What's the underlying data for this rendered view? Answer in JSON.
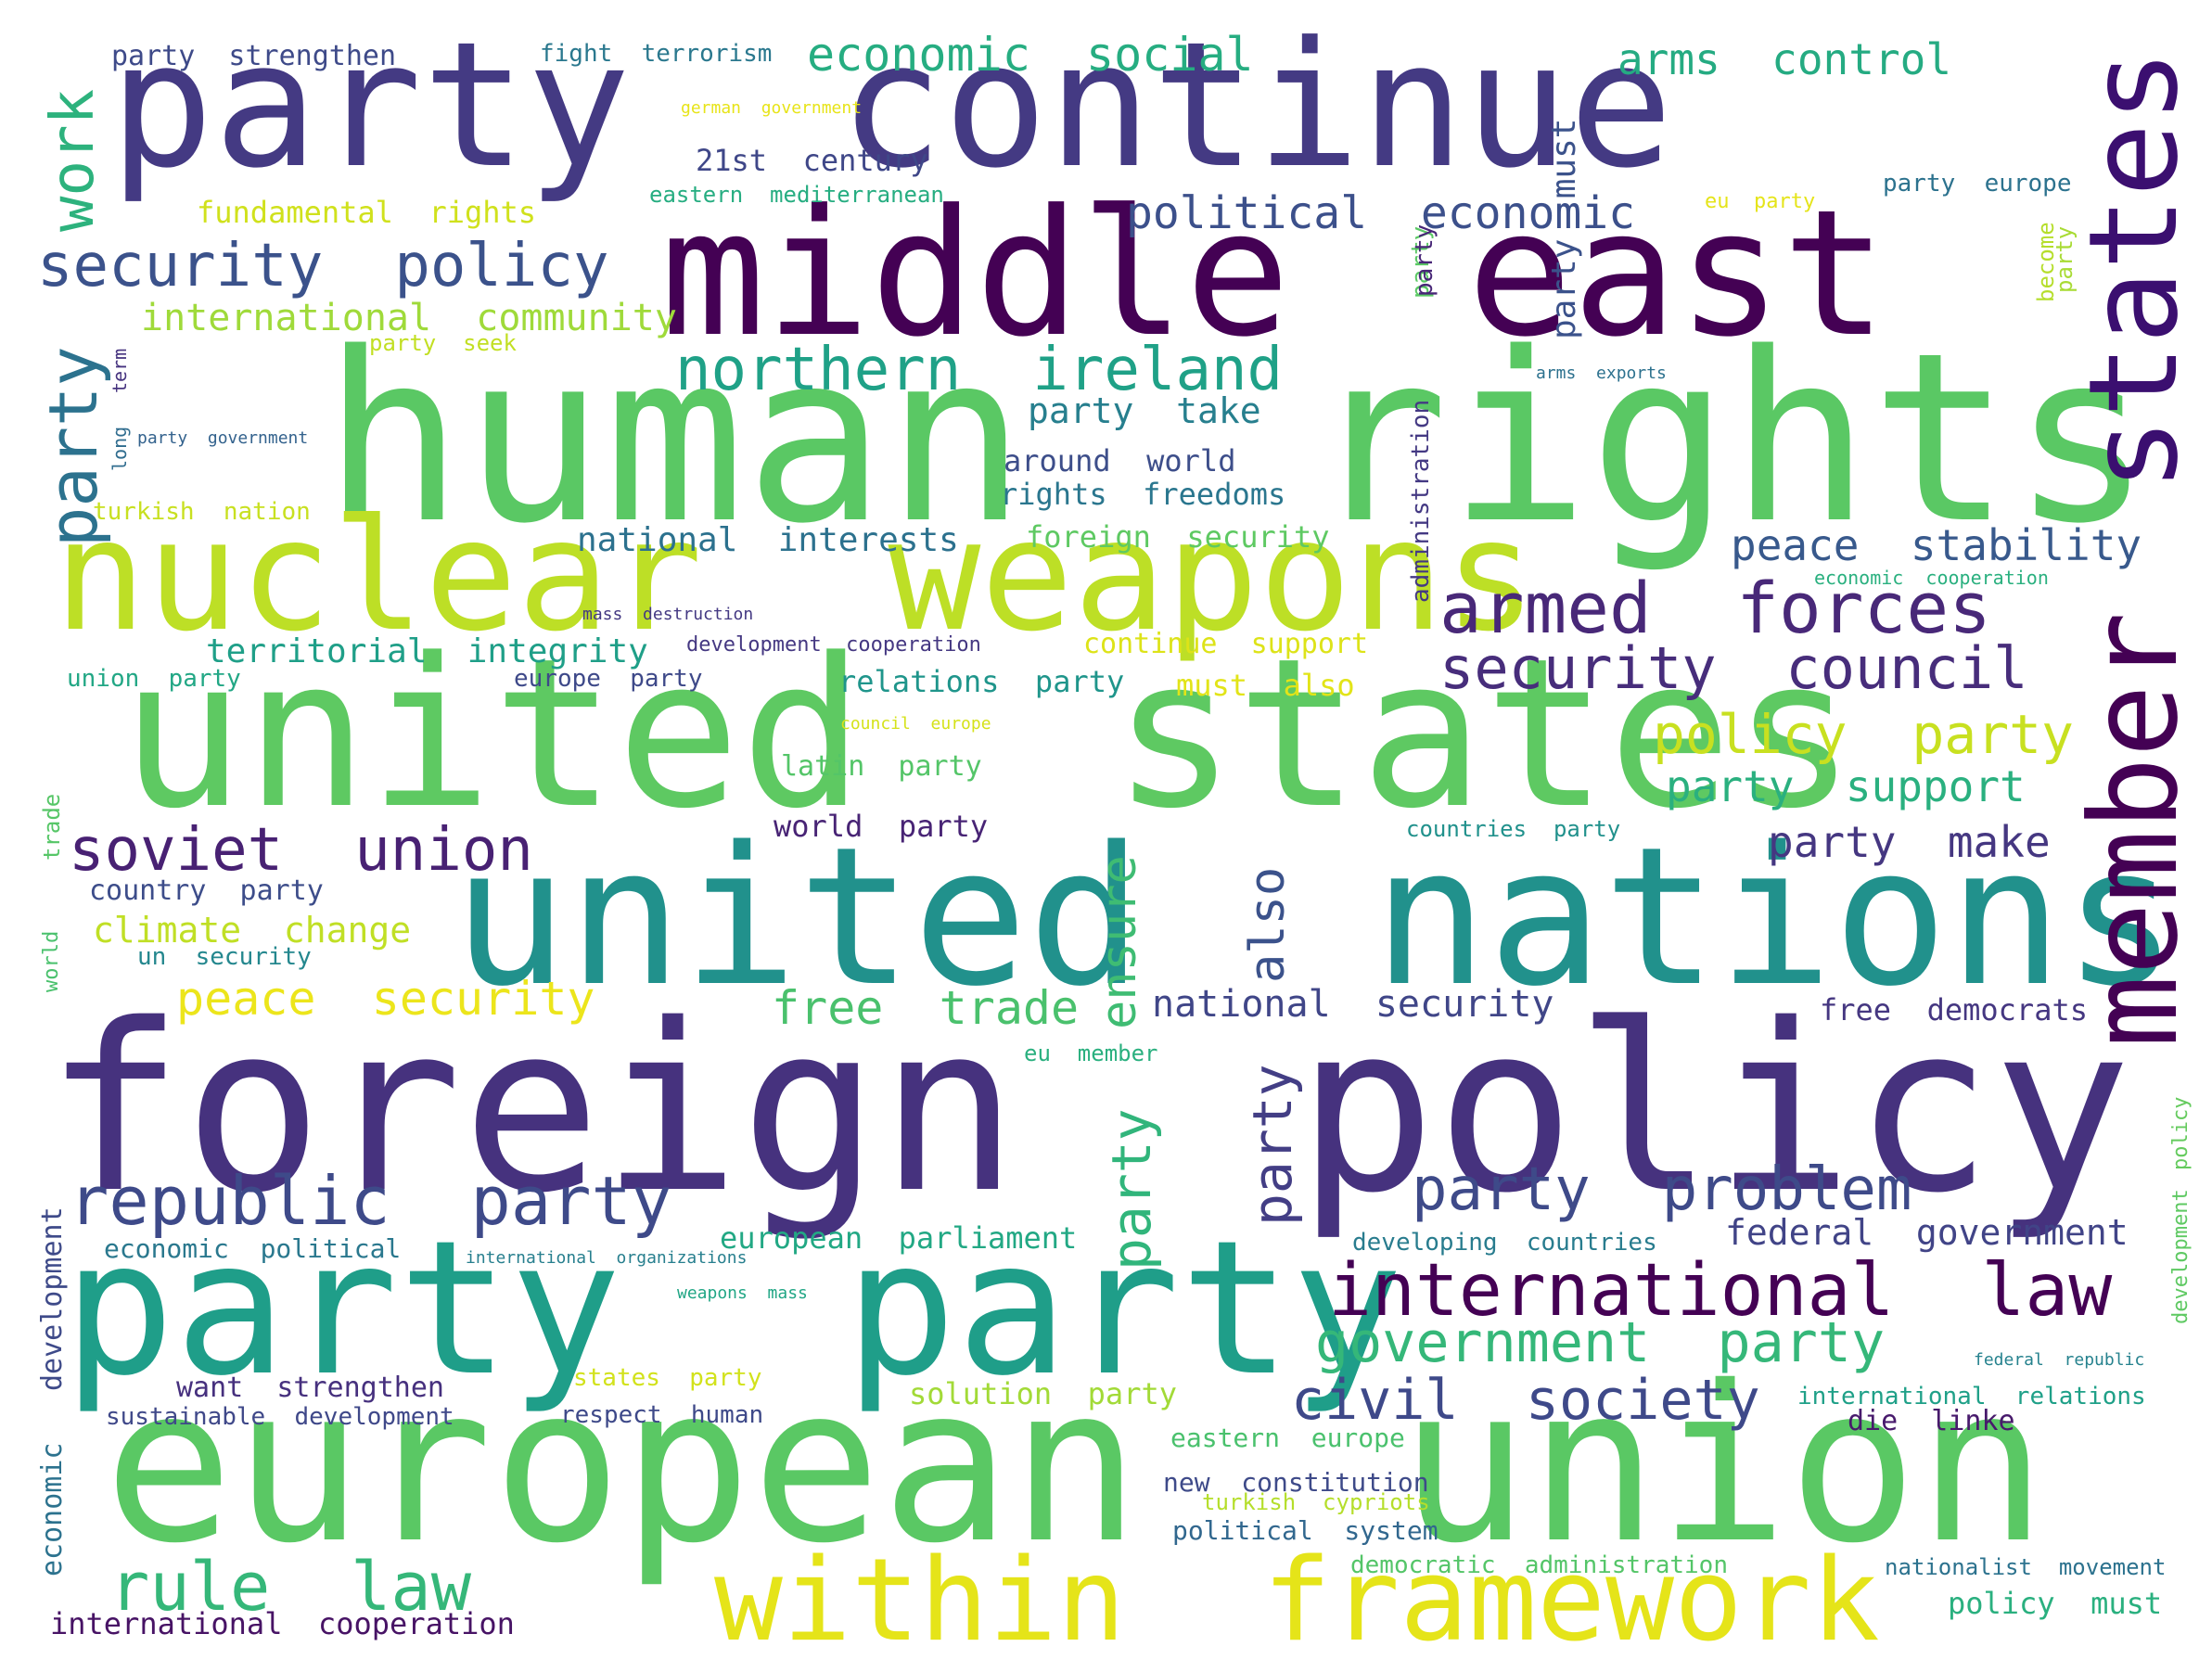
{
  "phrases": [
    {
      "text": "party  continue",
      "color": "#443a83"
    },
    {
      "text": "middle",
      "color": "#440154"
    },
    {
      "text": "east",
      "color": "#440154"
    },
    {
      "text": "human  rights",
      "color": "#5ac864"
    },
    {
      "text": "nuclear  weapons",
      "color": "#bddf26"
    },
    {
      "text": "united  states",
      "color": "#5ec962"
    },
    {
      "text": "united  nations",
      "color": "#21918c"
    },
    {
      "text": "foreign  policy",
      "color": "#46327e"
    },
    {
      "text": "party  party",
      "color": "#1f9e89"
    },
    {
      "text": "european  union",
      "color": "#5ac864"
    },
    {
      "text": "within  framework",
      "color": "#e5e419"
    },
    {
      "text": "states",
      "color": "#3b0f70"
    },
    {
      "text": "member",
      "color": "#440154"
    },
    {
      "text": "work",
      "color": "#2db27d"
    },
    {
      "text": "party",
      "color": "#2c728e"
    },
    {
      "text": "security  policy",
      "color": "#3b528b"
    },
    {
      "text": "northern  ireland",
      "color": "#1fa187"
    },
    {
      "text": "armed  forces",
      "color": "#482878"
    },
    {
      "text": "security  council",
      "color": "#472d7b"
    },
    {
      "text": "soviet  union",
      "color": "#482173"
    },
    {
      "text": "republic  party",
      "color": "#3e4a89"
    },
    {
      "text": "rule  law",
      "color": "#35b779"
    },
    {
      "text": "international  law",
      "color": "#440154"
    },
    {
      "text": "government  party",
      "color": "#35b779"
    },
    {
      "text": "civil  society",
      "color": "#3e4989"
    },
    {
      "text": "party  problem",
      "color": "#3e4a89"
    },
    {
      "text": "policy  party",
      "color": "#c8e020"
    },
    {
      "text": "party  support",
      "color": "#2ab07f"
    },
    {
      "text": "party  make",
      "color": "#453781"
    },
    {
      "text": "peace  stability",
      "color": "#38598c"
    },
    {
      "text": "economic  social",
      "color": "#26ad81"
    },
    {
      "text": "arms  control",
      "color": "#25ab82"
    },
    {
      "text": "party  strengthen",
      "color": "#3e4a89"
    },
    {
      "text": "fight  terrorism",
      "color": "#2a788e"
    },
    {
      "text": "german  government",
      "color": "#e7e419"
    },
    {
      "text": "21st  century",
      "color": "#3f4788"
    },
    {
      "text": "eastern  mediterranean",
      "color": "#26ad81"
    },
    {
      "text": "fundamental  rights",
      "color": "#d0e11c"
    },
    {
      "text": "political  economic",
      "color": "#3c508b"
    },
    {
      "text": "international  community",
      "color": "#9fda3a"
    },
    {
      "text": "party  seek",
      "color": "#c2df23"
    },
    {
      "text": "party  take",
      "color": "#277f8e"
    },
    {
      "text": "around  world",
      "color": "#3d4e8a"
    },
    {
      "text": "rights  freedoms",
      "color": "#2a768e"
    },
    {
      "text": "national  interests",
      "color": "#2c718e"
    },
    {
      "text": "foreign  security",
      "color": "#5ec962"
    },
    {
      "text": "territorial  integrity",
      "color": "#1f9f88"
    },
    {
      "text": "mass  destruction",
      "color": "#443983"
    },
    {
      "text": "development  cooperation",
      "color": "#453882"
    },
    {
      "text": "continue  support",
      "color": "#dde318"
    },
    {
      "text": "union  party",
      "color": "#22a785"
    },
    {
      "text": "europe  party",
      "color": "#3e4989"
    },
    {
      "text": "relations  party",
      "color": "#1f958b"
    },
    {
      "text": "must  also",
      "color": "#e2e418"
    },
    {
      "text": "council  europe",
      "color": "#d5e21a"
    },
    {
      "text": "latin  party",
      "color": "#54c568"
    },
    {
      "text": "world  party",
      "color": "#482475"
    },
    {
      "text": "country  party",
      "color": "#3d4d8a"
    },
    {
      "text": "climate  change",
      "color": "#c0df25"
    },
    {
      "text": "un  security",
      "color": "#24878e"
    },
    {
      "text": "peace  security",
      "color": "#ece51b"
    },
    {
      "text": "free  trade",
      "color": "#4ac16d"
    },
    {
      "text": "ensure",
      "color": "#3fbc73"
    },
    {
      "text": "also",
      "color": "#3b528b"
    },
    {
      "text": "party",
      "color": "#31b57b"
    },
    {
      "text": "party",
      "color": "#433e85"
    },
    {
      "text": "national  security",
      "color": "#404688"
    },
    {
      "text": "eu  member",
      "color": "#2ab07f"
    },
    {
      "text": "free  democrats",
      "color": "#453781"
    },
    {
      "text": "policy",
      "color": "#65cb5e"
    },
    {
      "text": "development",
      "color": "#5ec962"
    },
    {
      "text": "economic  political",
      "color": "#2a788e"
    },
    {
      "text": "international  organizations",
      "color": "#277f8e"
    },
    {
      "text": "weapons  mass",
      "color": "#21a685"
    },
    {
      "text": "european  parliament",
      "color": "#22a884"
    },
    {
      "text": "developing  countries",
      "color": "#287c8e"
    },
    {
      "text": "federal  government",
      "color": "#414487"
    },
    {
      "text": "federal  republic",
      "color": "#26828e"
    },
    {
      "text": "international  relations",
      "color": "#1fa088"
    },
    {
      "text": "die  linke",
      "color": "#481a6c"
    },
    {
      "text": "want  strengthen",
      "color": "#46307e"
    },
    {
      "text": "sustainable  development",
      "color": "#3f4889"
    },
    {
      "text": "states  party",
      "color": "#d2e21b"
    },
    {
      "text": "respect  human",
      "color": "#3e4989"
    },
    {
      "text": "solution  party",
      "color": "#a2da37"
    },
    {
      "text": "eastern  europe",
      "color": "#4ac16d"
    },
    {
      "text": "new  constitution",
      "color": "#3e4a89"
    },
    {
      "text": "turkish  cypriots",
      "color": "#b5de2b"
    },
    {
      "text": "political  system",
      "color": "#31678e"
    },
    {
      "text": "democratic  administration",
      "color": "#54c568"
    },
    {
      "text": "nationalist  movement",
      "color": "#2c728e"
    },
    {
      "text": "policy  must",
      "color": "#2ab07f"
    },
    {
      "text": "international  cooperation",
      "color": "#471365"
    },
    {
      "text": "economic",
      "color": "#2c728e"
    },
    {
      "text": "development",
      "color": "#3e4a89"
    },
    {
      "text": "trade",
      "color": "#56c667"
    },
    {
      "text": "world",
      "color": "#4ac16d"
    },
    {
      "text": "long",
      "color": "#2f6c8e"
    },
    {
      "text": "term",
      "color": "#46337f"
    },
    {
      "text": "party  government",
      "color": "#33628d"
    },
    {
      "text": "turkish  nation",
      "color": "#c8e020"
    },
    {
      "text": "party",
      "color": "#5ac864"
    },
    {
      "text": "party  must",
      "color": "#3b528b"
    },
    {
      "text": "party",
      "color": "#a8db34"
    },
    {
      "text": "become",
      "color": "#b5de2b"
    },
    {
      "text": "party  europe",
      "color": "#2c728e"
    },
    {
      "text": "eu  party",
      "color": "#e5e419"
    },
    {
      "text": "arms  exports",
      "color": "#2c718e"
    },
    {
      "text": "economic  cooperation",
      "color": "#2ab07f"
    },
    {
      "text": "countries  party",
      "color": "#21918c"
    },
    {
      "text": "party",
      "color": "#482677"
    },
    {
      "text": "administration",
      "color": "#443983"
    }
  ]
}
